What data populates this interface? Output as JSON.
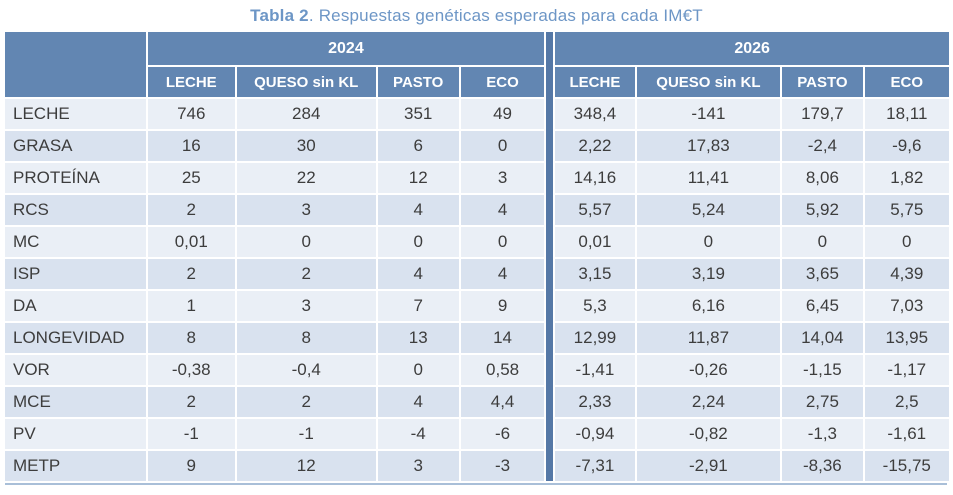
{
  "title": {
    "bold": "Tabla 2",
    "rest": ". Respuestas genéticas esperadas para cada IM€T"
  },
  "table": {
    "year_groups": [
      "2024",
      "2026"
    ],
    "sub_headers": [
      "LECHE",
      "QUESO sin KL",
      "PASTO",
      "ECO"
    ],
    "rows": [
      {
        "label": "LECHE",
        "values": [
          "746",
          "284",
          "351",
          "49",
          "348,4",
          "-141",
          "179,7",
          "18,11"
        ]
      },
      {
        "label": "GRASA",
        "values": [
          "16",
          "30",
          "6",
          "0",
          "2,22",
          "17,83",
          "-2,4",
          "-9,6"
        ]
      },
      {
        "label": "PROTEÍNA",
        "values": [
          "25",
          "22",
          "12",
          "3",
          "14,16",
          "11,41",
          "8,06",
          "1,82"
        ]
      },
      {
        "label": "RCS",
        "values": [
          "2",
          "3",
          "4",
          "4",
          "5,57",
          "5,24",
          "5,92",
          "5,75"
        ]
      },
      {
        "label": "MC",
        "values": [
          "0,01",
          "0",
          "0",
          "0",
          "0,01",
          "0",
          "0",
          "0"
        ]
      },
      {
        "label": "ISP",
        "values": [
          "2",
          "2",
          "4",
          "4",
          "3,15",
          "3,19",
          "3,65",
          "4,39"
        ]
      },
      {
        "label": "DA",
        "values": [
          "1",
          "3",
          "7",
          "9",
          "5,3",
          "6,16",
          "6,45",
          "7,03"
        ]
      },
      {
        "label": "LONGEVIDAD",
        "values": [
          "8",
          "8",
          "13",
          "14",
          "12,99",
          "11,87",
          "14,04",
          "13,95"
        ]
      },
      {
        "label": "VOR",
        "values": [
          "-0,38",
          "-0,4",
          "0",
          "0,58",
          "-1,41",
          "-0,26",
          "-1,15",
          "-1,17"
        ]
      },
      {
        "label": "MCE",
        "values": [
          "2",
          "2",
          "4",
          "4,4",
          "2,33",
          "2,24",
          "2,75",
          "2,5"
        ]
      },
      {
        "label": "PV",
        "values": [
          "-1",
          "-1",
          "-4",
          "-6",
          "-0,94",
          "-0,82",
          "-1,3",
          "-1,61"
        ]
      },
      {
        "label": "METP",
        "values": [
          "9",
          "12",
          "3",
          "-3",
          "-7,31",
          "-2,91",
          "-8,36",
          "-15,75"
        ]
      }
    ]
  },
  "colors": {
    "header_blue": "#6286B2",
    "group_divider_blue": "#5578A6",
    "row_light": "#EAEFF6",
    "row_dark": "#D9E2EF",
    "title_blue": "#6D96C6",
    "text_dark": "#3D3D3D",
    "bottom_rule": "#A9BFD8"
  }
}
